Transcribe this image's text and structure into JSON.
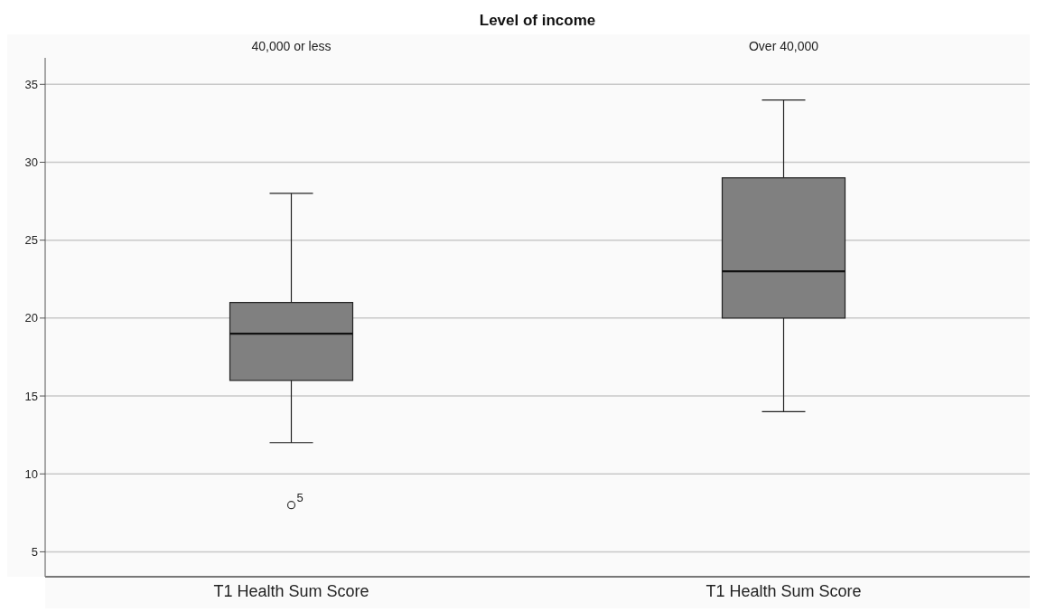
{
  "chart_data": {
    "type": "box",
    "title": "Level of income",
    "xlabel": "T1 Health Sum Score",
    "categories": [
      "40,000 or less",
      "Over 40,000"
    ],
    "color": "#808080",
    "boxes": [
      {
        "low": 12,
        "q1": 16,
        "median": 19,
        "q3": 21,
        "high": 28,
        "outliers": [
          8
        ]
      },
      {
        "low": 14,
        "q1": 20,
        "median": 23,
        "q3": 29,
        "high": 34
      }
    ],
    "ylim": [
      3.4,
      36.7
    ],
    "yticks": [
      5,
      10,
      15,
      20,
      25,
      30,
      35
    ],
    "grid": "y",
    "annotations": [
      "5"
    ]
  }
}
